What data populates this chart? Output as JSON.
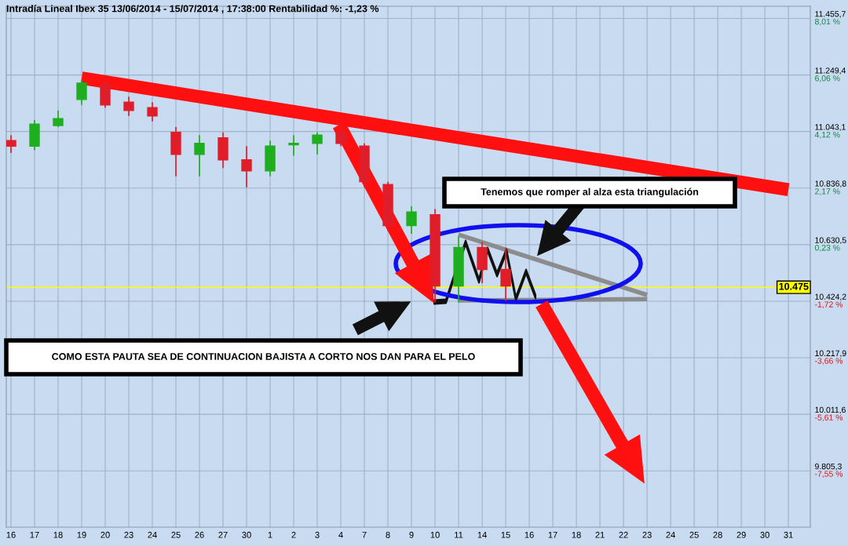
{
  "chart_data": {
    "type": "candlestick",
    "title": "Intradía Lineal Ibex 35 13/06/2014 - 15/07/2014 , 17:38:00 Rentabilidad %: -1,23 %",
    "categories": [
      "16",
      "17",
      "18",
      "19",
      "20",
      "23",
      "24",
      "25",
      "26",
      "27",
      "30",
      "1",
      "2",
      "3",
      "4",
      "7",
      "8",
      "9",
      "10",
      "11",
      "14",
      "15",
      "16",
      "17",
      "18",
      "21",
      "22",
      "23",
      "24",
      "25",
      "28",
      "29",
      "30",
      "31"
    ],
    "ohlc": [
      [
        11010,
        11030,
        10965,
        10990
      ],
      [
        10990,
        11085,
        10975,
        11070
      ],
      [
        11065,
        11120,
        11060,
        11090
      ],
      [
        11160,
        11230,
        11140,
        11220
      ],
      [
        11215,
        11225,
        11130,
        11140
      ],
      [
        11150,
        11170,
        11100,
        11120
      ],
      [
        11130,
        11150,
        11080,
        11100
      ],
      [
        11040,
        11060,
        10880,
        10960
      ],
      [
        10960,
        11030,
        10880,
        11000
      ],
      [
        11020,
        11040,
        10910,
        10940
      ],
      [
        10940,
        10990,
        10840,
        10900
      ],
      [
        10900,
        11010,
        10880,
        10990
      ],
      [
        10995,
        11030,
        10955,
        11000
      ],
      [
        11000,
        11040,
        10960,
        11030
      ],
      [
        11040,
        11070,
        10990,
        11000
      ],
      [
        10990,
        11000,
        10840,
        10860
      ],
      [
        10850,
        10860,
        10680,
        10700
      ],
      [
        10700,
        10770,
        10670,
        10750
      ],
      [
        10740,
        10760,
        10420,
        10480
      ],
      [
        10480,
        10660,
        10420,
        10620
      ],
      [
        10620,
        10640,
        10490,
        10540
      ],
      [
        10540,
        10620,
        10425,
        10480
      ],
      null,
      null,
      null,
      null,
      null,
      null,
      null,
      null,
      null,
      null,
      null,
      null
    ],
    "colors": [
      "#e01e2a",
      "#1fae1f",
      "#1fae1f",
      "#1fae1f",
      "#e01e2a",
      "#e01e2a",
      "#e01e2a",
      "#e01e2a",
      "#1fae1f",
      "#e01e2a",
      "#e01e2a",
      "#1fae1f",
      "#1fae1f",
      "#1fae1f",
      "#e01e2a",
      "#e01e2a",
      "#e01e2a",
      "#1fae1f",
      "#e01e2a",
      "#1fae1f",
      "#e01e2a",
      "#e01e2a",
      null,
      null,
      null,
      null,
      null,
      null,
      null,
      null,
      null,
      null,
      null,
      null
    ],
    "series": [
      {
        "type": "line",
        "color": "#ff1010",
        "values": [
          null,
          null,
          null,
          11238,
          null,
          null,
          null,
          null,
          null,
          null,
          null,
          null,
          null,
          null,
          null,
          null,
          null,
          null,
          null,
          null,
          null,
          null,
          null,
          null,
          null,
          null,
          null,
          null,
          null,
          null,
          null,
          null,
          null,
          10831
        ]
      },
      {
        "type": "line",
        "color": "#8c8c8c",
        "values": [
          null,
          null,
          null,
          null,
          null,
          null,
          null,
          null,
          null,
          null,
          null,
          null,
          null,
          null,
          null,
          null,
          null,
          null,
          null,
          10667,
          null,
          null,
          null,
          null,
          null,
          null,
          null,
          10447,
          null,
          null,
          null,
          null,
          null,
          null
        ]
      },
      {
        "type": "line",
        "color": "#8c8c8c",
        "values": [
          null,
          null,
          null,
          null,
          null,
          null,
          null,
          null,
          null,
          null,
          null,
          null,
          null,
          null,
          null,
          null,
          null,
          null,
          null,
          10427,
          null,
          null,
          null,
          null,
          null,
          null,
          null,
          10432,
          null,
          null,
          null,
          null,
          null,
          null
        ]
      }
    ],
    "ylim": [
      9600,
      11500
    ],
    "yticks": [
      {
        "value": 11455.7,
        "label": "11.455,7"
      },
      {
        "value": 11249.4,
        "label": "11.249,4"
      },
      {
        "value": 11043.1,
        "label": "11.043,1"
      },
      {
        "value": 10836.8,
        "label": "10.836,8"
      },
      {
        "value": 10630.5,
        "label": "10.630,5"
      },
      {
        "value": 10424.2,
        "label": "10.424,2"
      },
      {
        "value": 10217.9,
        "label": "10.217,9"
      },
      {
        "value": 10011.6,
        "label": "10.011,6"
      },
      {
        "value": 9805.3,
        "label": "9.805,3"
      }
    ],
    "y2lim": [
      -9.49,
      8.43
    ],
    "y2ticks": [
      {
        "value": 8.01,
        "label": "8,01 %"
      },
      {
        "value": 6.06,
        "label": "6,06 %"
      },
      {
        "value": 4.12,
        "label": "4,12 %"
      },
      {
        "value": 2.17,
        "label": "2,17 %"
      },
      {
        "value": 0.23,
        "label": "0,23 %"
      },
      {
        "value": -1.72,
        "label": "-1,72 %"
      },
      {
        "value": -3.66,
        "label": "-3,66 %"
      },
      {
        "value": -5.61,
        "label": "-5,61 %"
      },
      {
        "value": -7.55,
        "label": "-7,55 %"
      }
    ],
    "ref_lines": [
      {
        "axis": "y",
        "value": 10475,
        "label": "10.475",
        "color": "#ffff00"
      }
    ],
    "annotations": [
      "Tenemos que romper al alza esta triangulación",
      "COMO ESTA PAUTA SEA DE CONTINUACION BAJISTA A CORTO NOS DAN PARA EL PELO"
    ],
    "grid": true
  }
}
